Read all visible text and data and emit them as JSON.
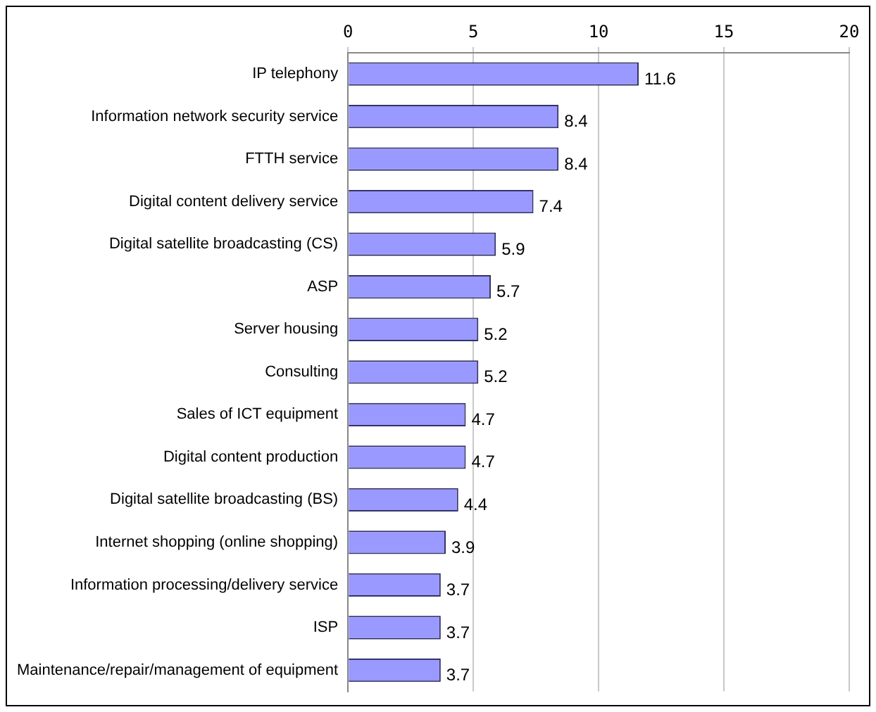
{
  "chart_data": {
    "type": "bar",
    "orientation": "horizontal",
    "categories": [
      "IP telephony",
      "Information network security service",
      "FTTH service",
      "Digital content delivery service",
      "Digital satellite broadcasting (CS)",
      "ASP",
      "Server housing",
      "Consulting",
      "Sales of ICT equipment",
      "Digital content production",
      "Digital satellite broadcasting (BS)",
      "Internet shopping (online shopping)",
      "Information processing/delivery service",
      "ISP",
      "Maintenance/repair/management of equipment"
    ],
    "values": [
      11.6,
      8.4,
      8.4,
      7.4,
      5.9,
      5.7,
      5.2,
      5.2,
      4.7,
      4.7,
      4.4,
      3.9,
      3.7,
      3.7,
      3.7
    ],
    "color": "#9999ff",
    "xlim": [
      0,
      20
    ],
    "xticks": [
      0,
      5,
      10,
      15,
      20
    ],
    "grid": "x",
    "data_labels": true
  }
}
